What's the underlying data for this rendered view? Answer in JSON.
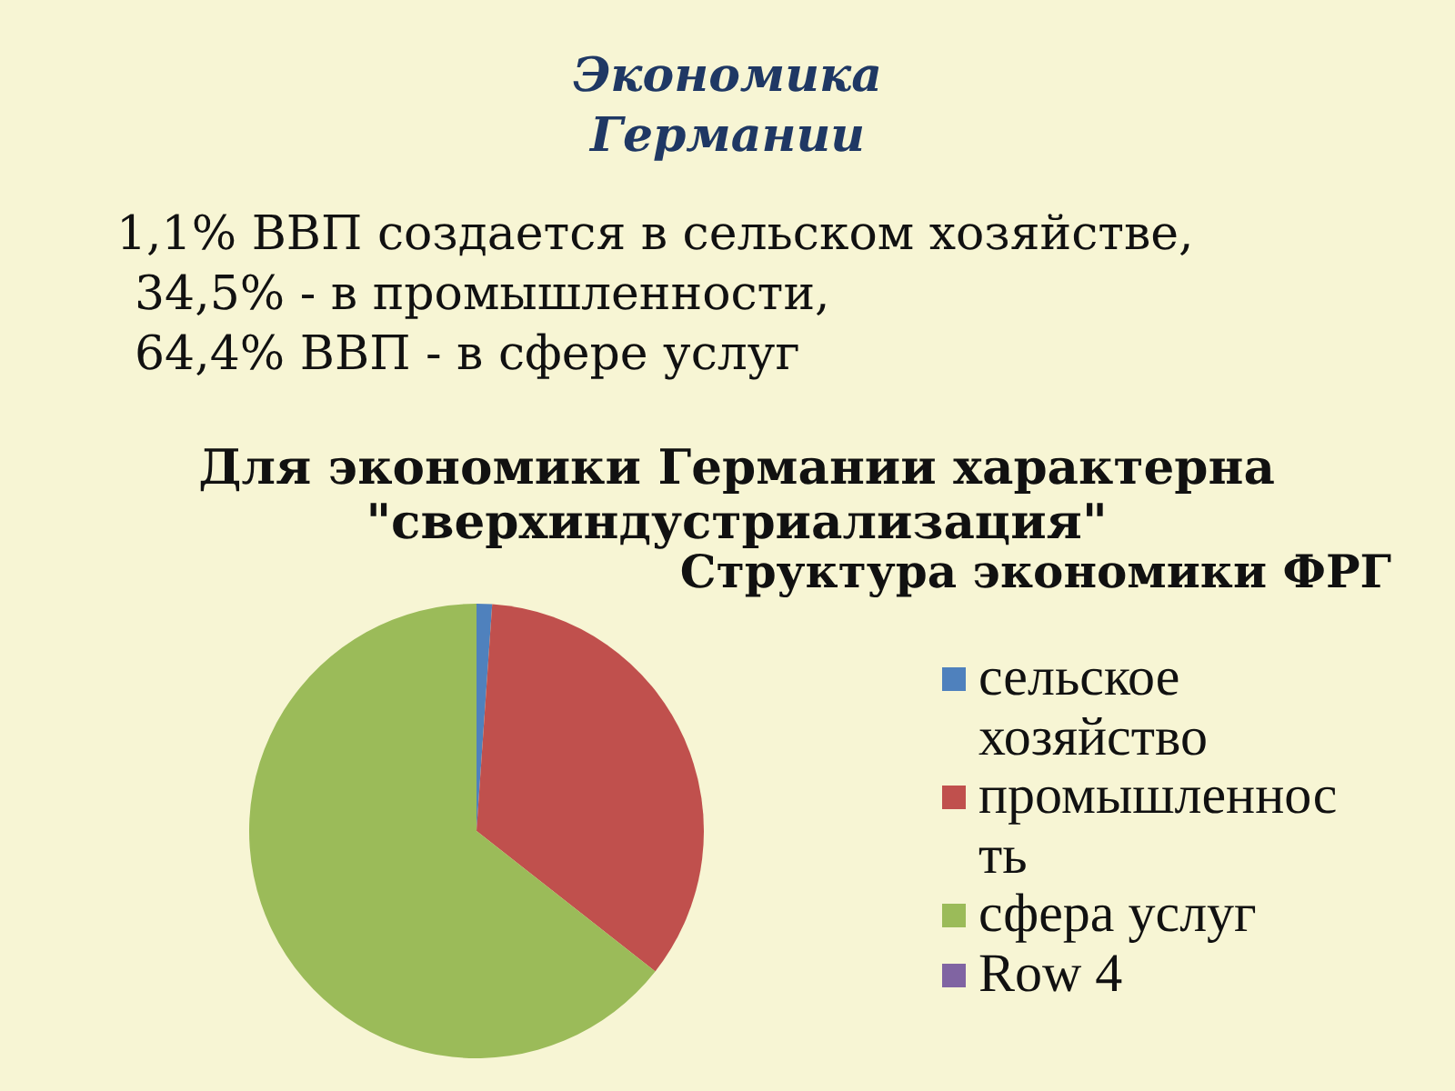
{
  "chart_data": {
    "type": "pie",
    "title": "Структура экономики ФРГ",
    "annotations": [
      "Экономика\nГермании",
      "1,1% ВВП создается в сельском хозяйстве,",
      "34,5% - в промышленности,",
      "64,4% ВВП - в сфере услуг",
      "Для экономики Германии характерна\n\"сверхиндустриализация\""
    ],
    "categories": [
      "сельское хозяйство",
      "промышленность",
      "сфера услуг",
      "Row 4"
    ],
    "values": [
      1.1,
      34.5,
      64.4,
      0
    ],
    "colors": [
      "#4f81bd",
      "#c0504d",
      "#9bbb59",
      "#8064a2"
    ],
    "legend": "right"
  }
}
